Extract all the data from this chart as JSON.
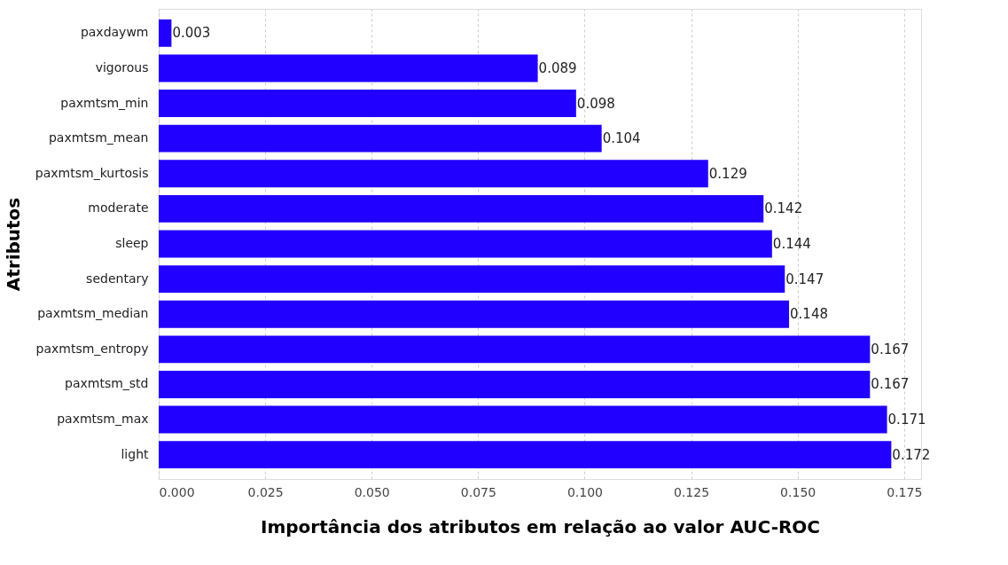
{
  "chart_data": {
    "type": "bar",
    "orientation": "horizontal",
    "xlabel": "Importância dos atributos em relação ao valor AUC-ROC",
    "ylabel": "Atributos",
    "categories": [
      "paxdaywm",
      "vigorous",
      "paxmtsm_min",
      "paxmtsm_mean",
      "paxmtsm_kurtosis",
      "moderate",
      "sleep",
      "sedentary",
      "paxmtsm_median",
      "paxmtsm_entropy",
      "paxmtsm_std",
      "paxmtsm_max",
      "light"
    ],
    "values": [
      0.003,
      0.089,
      0.098,
      0.104,
      0.129,
      0.142,
      0.144,
      0.147,
      0.148,
      0.167,
      0.167,
      0.171,
      0.172
    ],
    "color": "#2200ff",
    "xlim": [
      0,
      0.179
    ],
    "xticks": [
      {
        "value": 0,
        "label": "0.000"
      },
      {
        "value": 0.025,
        "label": "0.025"
      },
      {
        "value": 0.05,
        "label": "0.050"
      },
      {
        "value": 0.075,
        "label": "0.075"
      },
      {
        "value": 0.1,
        "label": "0.100"
      },
      {
        "value": 0.125,
        "label": "0.125"
      },
      {
        "value": 0.15,
        "label": "0.150"
      },
      {
        "value": 0.175,
        "label": "0.175"
      }
    ],
    "data_labels": true,
    "grid": "x"
  }
}
